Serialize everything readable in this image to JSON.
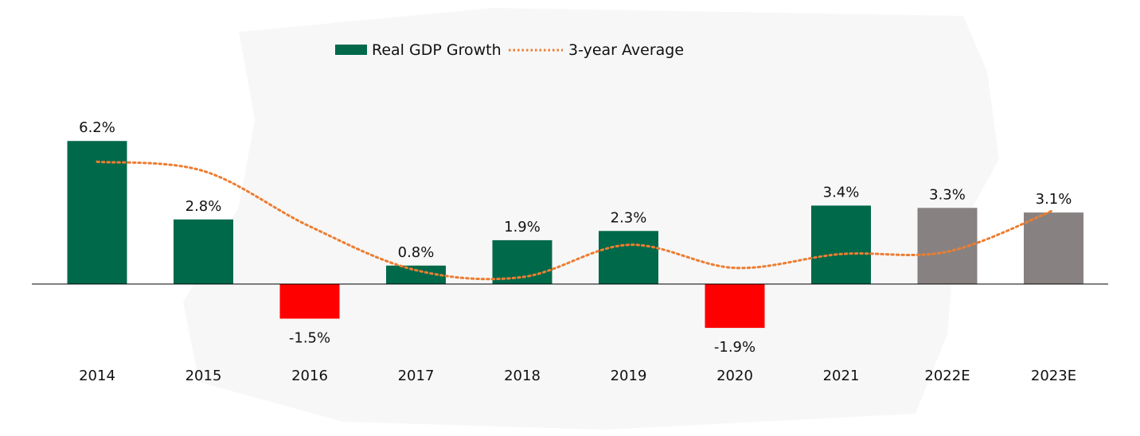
{
  "chart_data": {
    "type": "bar",
    "title": "",
    "xlabel": "",
    "ylabel": "",
    "categories": [
      "2014",
      "2015",
      "2016",
      "2017",
      "2018",
      "2019",
      "2020",
      "2021",
      "2022E",
      "2023E"
    ],
    "series": [
      {
        "name": "Real GDP Growth",
        "type": "bar",
        "values": [
          6.2,
          2.8,
          -1.5,
          0.8,
          1.9,
          2.3,
          -1.9,
          3.4,
          3.3,
          3.1
        ],
        "labels": [
          "6.2%",
          "2.8%",
          "-1.5%",
          "0.8%",
          "1.9%",
          "2.3%",
          "-1.9%",
          "3.4%",
          "3.3%",
          "3.1%"
        ]
      },
      {
        "name": "3-year Average",
        "type": "line",
        "style": "dotted",
        "values": [
          5.3,
          4.9,
          2.5,
          0.6,
          0.3,
          1.7,
          0.7,
          1.3,
          1.4,
          3.2
        ]
      }
    ],
    "ylim": [
      -2.5,
      7
    ],
    "grid": false,
    "legend": "top-center",
    "colors": {
      "positive": "#00694A",
      "negative": "#FF0000",
      "estimate": "#878281",
      "average": "#ED7D31",
      "axis": "#000000"
    },
    "estimate_categories": [
      "2022E",
      "2023E"
    ]
  }
}
